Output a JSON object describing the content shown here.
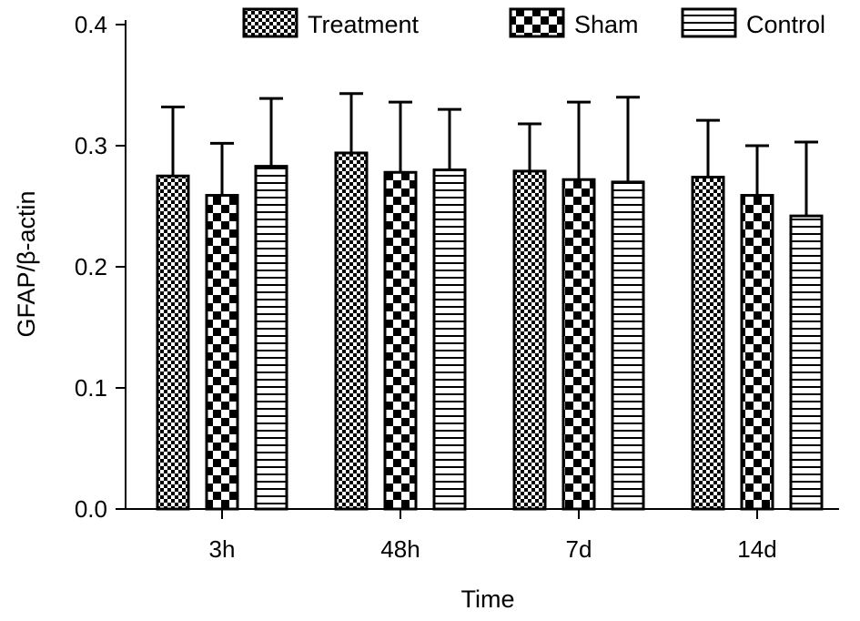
{
  "chart_data": {
    "type": "bar",
    "title": "",
    "xlabel": "Time",
    "ylabel": "GFAP/β-actin",
    "ylim": [
      0,
      0.4
    ],
    "yticks": [
      "0.0",
      "0.1",
      "0.2",
      "0.3",
      "0.4"
    ],
    "categories": [
      "3h",
      "48h",
      "7d",
      "14d"
    ],
    "legend_position": "top",
    "grid": false,
    "series": [
      {
        "name": "Treatment",
        "pattern": "fine-checker",
        "values": [
          0.275,
          0.294,
          0.279,
          0.274
        ],
        "errors": [
          0.057,
          0.049,
          0.039,
          0.047
        ]
      },
      {
        "name": "Sham",
        "pattern": "coarse-checker",
        "values": [
          0.259,
          0.278,
          0.272,
          0.259
        ],
        "errors": [
          0.043,
          0.058,
          0.064,
          0.041
        ]
      },
      {
        "name": "Control",
        "pattern": "horizontal-stripes",
        "values": [
          0.283,
          0.28,
          0.27,
          0.242
        ],
        "errors": [
          0.056,
          0.05,
          0.07,
          0.061
        ]
      }
    ]
  }
}
